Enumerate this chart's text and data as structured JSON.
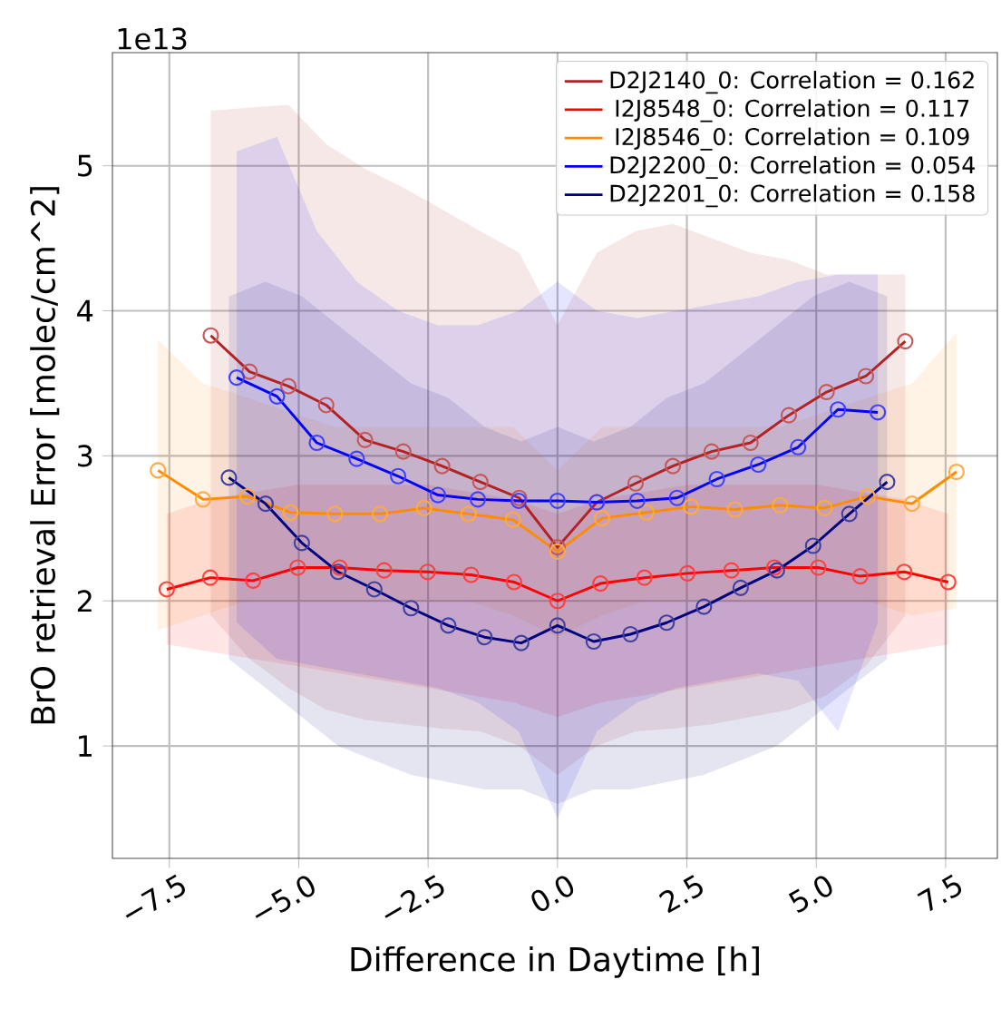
{
  "chart_data": {
    "type": "line",
    "xlabel": "Difference in Daytime [h]",
    "ylabel": "BrO retrieval Error [molec/cm^2]",
    "annotations": [
      "1e13"
    ],
    "xlim": [
      -8.6,
      8.5
    ],
    "ylim": [
      0.225,
      5.78
    ],
    "xticks": [
      {
        "value": -7.5,
        "label": "−7.5"
      },
      {
        "value": -5,
        "label": "−5.0"
      },
      {
        "value": -2.5,
        "label": "−2.5"
      },
      {
        "value": 0,
        "label": "0.0"
      },
      {
        "value": 2.5,
        "label": "2.5"
      },
      {
        "value": 5,
        "label": "5.0"
      },
      {
        "value": 7.5,
        "label": "7.5"
      }
    ],
    "yticks": [
      1,
      2,
      3,
      4,
      5
    ],
    "grid": true,
    "legend": "top right",
    "marker": "circle",
    "line_style": "solid",
    "series": [
      {
        "name": "D2J2140_0: Correlation = 0.162",
        "color": "#b22222",
        "x": [
          -6.7,
          -5.95,
          -5.2,
          -4.47,
          -3.72,
          -2.98,
          -2.23,
          -1.49,
          -0.74,
          0,
          0.76,
          1.51,
          2.23,
          2.98,
          3.73,
          4.47,
          5.2,
          5.96,
          6.72
        ],
        "values": [
          3.83,
          3.58,
          3.48,
          3.35,
          3.11,
          3.03,
          2.93,
          2.82,
          2.71,
          2.37,
          2.68,
          2.81,
          2.93,
          3.03,
          3.09,
          3.28,
          3.44,
          3.55,
          3.79
        ],
        "lower": [
          1.9,
          1.6,
          1.4,
          1.25,
          1.18,
          1.15,
          1.12,
          1.1,
          1.0,
          0.8,
          1.0,
          1.1,
          1.12,
          1.15,
          1.2,
          1.25,
          1.35,
          1.55,
          1.9
        ],
        "upper": [
          5.38,
          5.4,
          5.42,
          5.15,
          4.98,
          4.85,
          4.7,
          4.55,
          4.4,
          3.9,
          4.4,
          4.55,
          4.6,
          4.5,
          4.4,
          4.35,
          4.25,
          4.25,
          4.25
        ]
      },
      {
        "name": "I2J8548_0: Correlation = 0.117",
        "color": "#ff0000",
        "x": [
          -7.55,
          -6.71,
          -5.88,
          -5.02,
          -4.21,
          -3.35,
          -2.51,
          -1.67,
          -0.84,
          0,
          0.83,
          1.68,
          2.51,
          3.36,
          4.19,
          5.04,
          5.85,
          6.7,
          7.55
        ],
        "values": [
          2.08,
          2.16,
          2.14,
          2.23,
          2.23,
          2.21,
          2.2,
          2.18,
          2.13,
          2.0,
          2.12,
          2.16,
          2.19,
          2.21,
          2.23,
          2.23,
          2.17,
          2.2,
          2.13
        ],
        "lower": [
          1.7,
          1.65,
          1.6,
          1.55,
          1.5,
          1.45,
          1.4,
          1.35,
          1.3,
          1.2,
          1.3,
          1.35,
          1.4,
          1.45,
          1.5,
          1.55,
          1.6,
          1.65,
          1.7
        ],
        "upper": [
          2.6,
          2.7,
          2.75,
          2.8,
          2.8,
          2.8,
          2.8,
          2.75,
          2.7,
          2.6,
          2.7,
          2.75,
          2.8,
          2.8,
          2.8,
          2.8,
          2.75,
          2.7,
          2.6
        ]
      },
      {
        "name": "I2J8546_0: Correlation = 0.109",
        "color": "#ff8c00",
        "x": [
          -7.72,
          -6.85,
          -5.99,
          -5.16,
          -4.3,
          -3.43,
          -2.58,
          -1.72,
          -0.86,
          0,
          0.86,
          1.72,
          2.58,
          3.43,
          4.3,
          5.16,
          5.99,
          6.85,
          7.71
        ],
        "values": [
          2.9,
          2.7,
          2.72,
          2.61,
          2.6,
          2.6,
          2.64,
          2.6,
          2.56,
          2.34,
          2.57,
          2.61,
          2.65,
          2.63,
          2.66,
          2.64,
          2.72,
          2.67,
          2.89
        ],
        "lower": [
          1.8,
          1.9,
          2.0,
          2.0,
          2.0,
          2.0,
          2.0,
          2.0,
          1.9,
          1.75,
          1.9,
          2.0,
          2.0,
          2.0,
          2.0,
          2.0,
          2.0,
          1.9,
          1.95
        ],
        "upper": [
          3.8,
          3.5,
          3.4,
          3.3,
          3.2,
          3.2,
          3.2,
          3.2,
          3.2,
          2.9,
          3.2,
          3.2,
          3.2,
          3.2,
          3.2,
          3.3,
          3.4,
          3.5,
          3.85
        ]
      },
      {
        "name": "D2J2200_0: Correlation = 0.054",
        "color": "#0000ff",
        "x": [
          -6.2,
          -5.42,
          -4.65,
          -3.88,
          -3.08,
          -2.31,
          -1.54,
          -0.75,
          0,
          0.76,
          1.54,
          2.31,
          3.08,
          3.88,
          4.65,
          5.42,
          6.19
        ],
        "values": [
          3.54,
          3.41,
          3.09,
          2.98,
          2.86,
          2.73,
          2.7,
          2.69,
          2.69,
          2.68,
          2.69,
          2.71,
          2.84,
          2.94,
          3.06,
          3.32,
          3.3
        ],
        "lower": [
          1.85,
          1.6,
          1.55,
          1.5,
          1.45,
          1.4,
          1.3,
          1.1,
          0.5,
          1.1,
          1.3,
          1.4,
          1.45,
          1.5,
          1.45,
          1.1,
          1.85
        ],
        "upper": [
          5.1,
          5.2,
          4.55,
          4.2,
          4.0,
          3.9,
          3.9,
          4.0,
          4.2,
          4.0,
          3.95,
          4.0,
          4.05,
          4.1,
          4.2,
          4.25,
          4.25
        ]
      },
      {
        "name": "D2J2201_0: Correlation = 0.158",
        "color": "#000080",
        "x": [
          -6.35,
          -5.64,
          -4.94,
          -4.24,
          -3.54,
          -2.83,
          -2.11,
          -1.41,
          -0.7,
          0,
          0.7,
          1.41,
          2.11,
          2.83,
          3.54,
          4.24,
          4.94,
          5.64,
          6.37
        ],
        "values": [
          2.85,
          2.67,
          2.4,
          2.2,
          2.08,
          1.95,
          1.83,
          1.75,
          1.71,
          1.83,
          1.72,
          1.77,
          1.85,
          1.96,
          2.09,
          2.21,
          2.38,
          2.6,
          2.82
        ],
        "lower": [
          1.6,
          1.4,
          1.2,
          1.0,
          0.9,
          0.8,
          0.75,
          0.7,
          0.7,
          0.6,
          0.7,
          0.7,
          0.75,
          0.8,
          0.9,
          1.0,
          1.2,
          1.4,
          1.6
        ],
        "upper": [
          4.1,
          4.2,
          4.1,
          3.9,
          3.7,
          3.5,
          3.4,
          3.2,
          3.1,
          3.2,
          3.1,
          3.2,
          3.4,
          3.5,
          3.7,
          3.9,
          4.1,
          4.2,
          4.1
        ]
      }
    ]
  }
}
